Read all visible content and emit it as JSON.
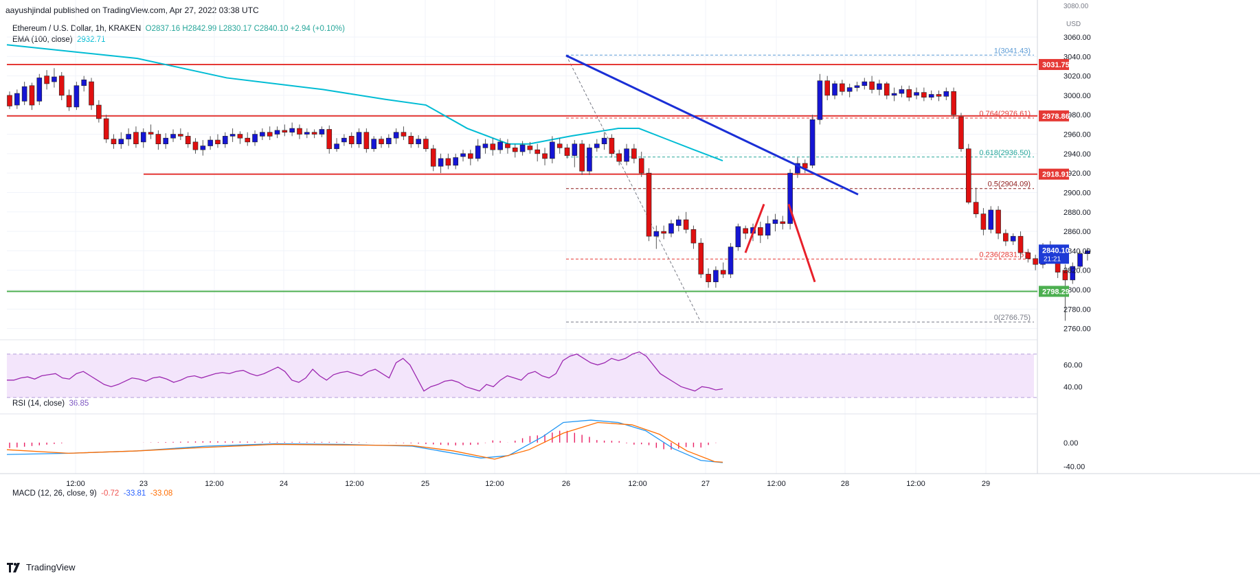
{
  "header": {
    "publisher": "aayushjindal published on TradingView.com, Apr 27, 2022 03:38 UTC"
  },
  "legend": {
    "symbol": "Ethereum / U.S. Dollar, 1h, KRAKEN",
    "ohlc": "O2837.16  H2842.99  L2830.17  C2840.10  +2.94 (+0.10%)",
    "ema_label": "EMA (100, close)",
    "ema_value": "2932.71"
  },
  "rsi": {
    "label": "RSI (14, close)",
    "value": "36.85"
  },
  "macd": {
    "label": "MACD (12, 26, close, 9)",
    "hist": "-0.72",
    "macd": "-33.81",
    "signal": "-33.08"
  },
  "footer": {
    "brand": "TradingView"
  },
  "axis": {
    "currency": "USD",
    "partial_top_tick": "3080.00"
  },
  "chart_data": [
    {
      "type": "candlestick",
      "symbol": "Ethereum / U.S. Dollar, 1h, KRAKEN",
      "x_ticks": [
        "12:00",
        "23",
        "12:00",
        "24",
        "12:00",
        "25",
        "12:00",
        "26",
        "12:00",
        "27",
        "12:00",
        "28",
        "12:00",
        "29"
      ],
      "y_ticks": [
        "3060.00",
        "3040.00",
        "3020.00",
        "3000.00",
        "2980.00",
        "2960.00",
        "2940.00",
        "2920.00",
        "2900.00",
        "2880.00",
        "2860.00",
        "2840.00",
        "2820.00",
        "2800.00",
        "2780.00",
        "2760.00"
      ],
      "ylim": [
        2752,
        3084
      ],
      "key_levels": [
        {
          "label": "3031.75",
          "color": "#e53935"
        },
        {
          "label": "2978.86",
          "color": "#e53935"
        },
        {
          "label": "2918.91",
          "color": "#e53935"
        },
        {
          "label": "2798.29",
          "color": "#4caf50"
        }
      ],
      "fib_levels": [
        {
          "label": "1(3041.43)",
          "price": 3041.43,
          "color": "#5b9bd5"
        },
        {
          "label": "0.764(2976.61)",
          "price": 2976.61,
          "color": "#e53935"
        },
        {
          "label": "0.618(2936.50)",
          "price": 2936.5,
          "color": "#26a69a"
        },
        {
          "label": "0.5(2904.09)",
          "price": 2904.09,
          "color": "#8e1b1b"
        },
        {
          "label": "0.236(2831.57)",
          "price": 2831.57,
          "color": "#e53935"
        },
        {
          "label": "0(2766.75)",
          "price": 2766.75,
          "color": "#787b86"
        }
      ],
      "last_price": {
        "price": "2840.10",
        "countdown": "21:21"
      },
      "trendline": {
        "from": 3041,
        "to": 2898,
        "color": "#1a2fd6"
      },
      "ema": {
        "value": 2932.71,
        "color": "#00bcd4"
      },
      "candles": [
        [
          3000,
          2989,
          3004,
          2986
        ],
        [
          2990,
          3002,
          3006,
          2986
        ],
        [
          2994,
          3009,
          3014,
          2990
        ],
        [
          3010,
          2990,
          3013,
          2985
        ],
        [
          2994,
          3018,
          3022,
          2990
        ],
        [
          3020,
          3012,
          3026,
          3006
        ],
        [
          3014,
          3019,
          3028,
          3008
        ],
        [
          3020,
          3000,
          3024,
          2995
        ],
        [
          3000,
          2988,
          3006,
          2984
        ],
        [
          2988,
          3010,
          3014,
          2985
        ],
        [
          3010,
          3016,
          3020,
          3004
        ],
        [
          3014,
          2990,
          3018,
          2985
        ],
        [
          2990,
          2976,
          2995,
          2972
        ],
        [
          2976,
          2955,
          2980,
          2951
        ],
        [
          2955,
          2950,
          2960,
          2945
        ],
        [
          2950,
          2955,
          2962,
          2945
        ],
        [
          2955,
          2960,
          2966,
          2948
        ],
        [
          2962,
          2950,
          2968,
          2946
        ],
        [
          2952,
          2962,
          2966,
          2946
        ],
        [
          2962,
          2960,
          2970,
          2955
        ],
        [
          2960,
          2950,
          2964,
          2944
        ],
        [
          2950,
          2956,
          2961,
          2945
        ],
        [
          2956,
          2960,
          2965,
          2952
        ],
        [
          2960,
          2958,
          2966,
          2954
        ],
        [
          2958,
          2950,
          2962,
          2946
        ],
        [
          2952,
          2944,
          2956,
          2940
        ],
        [
          2944,
          2948,
          2954,
          2938
        ],
        [
          2948,
          2954,
          2958,
          2944
        ],
        [
          2954,
          2950,
          2960,
          2946
        ],
        [
          2950,
          2958,
          2962,
          2946
        ],
        [
          2958,
          2960,
          2966,
          2952
        ],
        [
          2960,
          2956,
          2963,
          2950
        ],
        [
          2956,
          2952,
          2962,
          2948
        ],
        [
          2952,
          2960,
          2964,
          2948
        ],
        [
          2958,
          2962,
          2966,
          2954
        ],
        [
          2962,
          2958,
          2968,
          2954
        ],
        [
          2960,
          2964,
          2968,
          2956
        ],
        [
          2964,
          2962,
          2970,
          2958
        ],
        [
          2962,
          2966,
          2972,
          2958
        ],
        [
          2966,
          2960,
          2970,
          2955
        ],
        [
          2960,
          2962,
          2966,
          2956
        ],
        [
          2962,
          2960,
          2965,
          2956
        ],
        [
          2960,
          2965,
          2968,
          2957
        ],
        [
          2965,
          2945,
          2969,
          2940
        ],
        [
          2945,
          2950,
          2956,
          2942
        ],
        [
          2952,
          2956,
          2960,
          2948
        ],
        [
          2958,
          2950,
          2962,
          2946
        ],
        [
          2950,
          2962,
          2966,
          2946
        ],
        [
          2962,
          2945,
          2966,
          2941
        ],
        [
          2945,
          2955,
          2958,
          2942
        ],
        [
          2955,
          2950,
          2958,
          2946
        ],
        [
          2950,
          2956,
          2960,
          2946
        ],
        [
          2956,
          2962,
          2966,
          2950
        ],
        [
          2962,
          2958,
          2968,
          2954
        ],
        [
          2958,
          2950,
          2962,
          2946
        ],
        [
          2950,
          2955,
          2959,
          2946
        ],
        [
          2955,
          2945,
          2958,
          2942
        ],
        [
          2945,
          2927,
          2949,
          2922
        ],
        [
          2927,
          2935,
          2940,
          2920
        ],
        [
          2935,
          2928,
          2940,
          2924
        ],
        [
          2928,
          2936,
          2940,
          2924
        ],
        [
          2937,
          2940,
          2944,
          2932
        ],
        [
          2940,
          2935,
          2944,
          2928
        ],
        [
          2935,
          2948,
          2955,
          2932
        ],
        [
          2946,
          2950,
          2955,
          2940
        ],
        [
          2950,
          2944,
          2956,
          2938
        ],
        [
          2944,
          2952,
          2956,
          2940
        ],
        [
          2950,
          2946,
          2955,
          2940
        ],
        [
          2946,
          2942,
          2950,
          2936
        ],
        [
          2942,
          2949,
          2953,
          2938
        ],
        [
          2948,
          2944,
          2952,
          2940
        ],
        [
          2944,
          2940,
          2950,
          2932
        ],
        [
          2940,
          2935,
          2946,
          2928
        ],
        [
          2935,
          2952,
          2958,
          2930
        ],
        [
          2950,
          2946,
          2956,
          2940
        ],
        [
          2946,
          2938,
          2950,
          2935
        ],
        [
          2938,
          2950,
          2954,
          2926
        ],
        [
          2950,
          2922,
          2954,
          2918
        ],
        [
          2922,
          2946,
          2950,
          2918
        ],
        [
          2946,
          2950,
          2955,
          2942
        ],
        [
          2950,
          2956,
          2962,
          2944
        ],
        [
          2956,
          2940,
          2960,
          2936
        ],
        [
          2940,
          2932,
          2944,
          2928
        ],
        [
          2932,
          2945,
          2950,
          2928
        ],
        [
          2945,
          2935,
          2950,
          2930
        ],
        [
          2935,
          2920,
          2942,
          2916
        ],
        [
          2920,
          2855,
          2925,
          2850
        ],
        [
          2855,
          2860,
          2866,
          2842
        ],
        [
          2860,
          2858,
          2866,
          2852
        ],
        [
          2858,
          2868,
          2872,
          2854
        ],
        [
          2866,
          2872,
          2876,
          2860
        ],
        [
          2872,
          2862,
          2880,
          2858
        ],
        [
          2862,
          2848,
          2866,
          2842
        ],
        [
          2848,
          2816,
          2853,
          2812
        ],
        [
          2816,
          2808,
          2822,
          2802
        ],
        [
          2808,
          2820,
          2824,
          2802
        ],
        [
          2820,
          2816,
          2828,
          2812
        ],
        [
          2816,
          2844,
          2848,
          2812
        ],
        [
          2844,
          2865,
          2868,
          2840
        ],
        [
          2863,
          2858,
          2866,
          2852
        ],
        [
          2858,
          2864,
          2868,
          2850
        ],
        [
          2864,
          2856,
          2870,
          2848
        ],
        [
          2856,
          2868,
          2876,
          2852
        ],
        [
          2868,
          2872,
          2878,
          2860
        ],
        [
          2870,
          2868,
          2876,
          2862
        ],
        [
          2868,
          2920,
          2924,
          2862
        ],
        [
          2920,
          2930,
          2936,
          2915
        ],
        [
          2930,
          2925,
          2934,
          2920
        ],
        [
          2928,
          2975,
          2980,
          2925
        ],
        [
          2975,
          3015,
          3022,
          2970
        ],
        [
          3015,
          3000,
          3020,
          2995
        ],
        [
          3000,
          3012,
          3015,
          2996
        ],
        [
          3012,
          3004,
          3016,
          3000
        ],
        [
          3004,
          3008,
          3012,
          2998
        ],
        [
          3008,
          3010,
          3014,
          3004
        ],
        [
          3010,
          3014,
          3018,
          3006
        ],
        [
          3014,
          3006,
          3020,
          3002
        ],
        [
          3006,
          3012,
          3016,
          3000
        ],
        [
          3012,
          3000,
          3014,
          2996
        ],
        [
          3000,
          3002,
          3008,
          2994
        ],
        [
          3002,
          3006,
          3010,
          2998
        ],
        [
          3006,
          2998,
          3010,
          2994
        ],
        [
          3000,
          3003,
          3008,
          2996
        ],
        [
          3003,
          2998,
          3008,
          2994
        ],
        [
          2998,
          3001,
          3005,
          2995
        ],
        [
          3001,
          2999,
          3005,
          2994
        ],
        [
          2999,
          3004,
          3008,
          2995
        ],
        [
          3004,
          2980,
          3008,
          2976
        ],
        [
          2978,
          2945,
          2982,
          2942
        ],
        [
          2945,
          2890,
          2950,
          2888
        ],
        [
          2890,
          2878,
          2905,
          2874
        ],
        [
          2878,
          2862,
          2884,
          2856
        ],
        [
          2862,
          2882,
          2886,
          2858
        ],
        [
          2882,
          2858,
          2886,
          2852
        ],
        [
          2858,
          2850,
          2862,
          2845
        ],
        [
          2850,
          2855,
          2858,
          2846
        ],
        [
          2855,
          2838,
          2860,
          2832
        ],
        [
          2838,
          2832,
          2842,
          2828
        ],
        [
          2832,
          2826,
          2836,
          2820
        ],
        [
          2826,
          2846,
          2848,
          2822
        ],
        [
          2846,
          2838,
          2850,
          2834
        ],
        [
          2838,
          2818,
          2842,
          2812
        ],
        [
          2820,
          2810,
          2826,
          2768
        ],
        [
          2810,
          2824,
          2828,
          2806
        ],
        [
          2824,
          2837,
          2840,
          2822
        ],
        [
          2837,
          2840,
          2843,
          2830
        ]
      ]
    },
    {
      "type": "line",
      "name": "RSI (14, close)",
      "ylim": [
        20,
        80
      ],
      "y_ticks": [
        "60.00",
        "40.00"
      ],
      "band": [
        30,
        70
      ],
      "values": [
        46,
        46,
        48,
        49,
        47,
        50,
        51,
        52,
        48,
        47,
        52,
        54,
        50,
        46,
        42,
        40,
        42,
        45,
        48,
        47,
        45,
        48,
        49,
        47,
        44,
        46,
        49,
        50,
        48,
        50,
        52,
        53,
        52,
        54,
        55,
        52,
        50,
        52,
        55,
        58,
        54,
        46,
        44,
        48,
        56,
        50,
        46,
        51,
        53,
        54,
        52,
        50,
        54,
        56,
        52,
        48,
        62,
        66,
        60,
        48,
        36,
        40,
        42,
        45,
        46,
        44,
        40,
        38,
        36,
        42,
        40,
        46,
        50,
        48,
        46,
        52,
        54,
        50,
        48,
        52,
        64,
        68,
        70,
        66,
        62,
        60,
        62,
        66,
        64,
        66,
        70,
        72,
        68,
        60,
        52,
        48,
        44,
        40,
        38,
        36,
        40,
        39,
        37,
        38
      ]
    },
    {
      "type": "bar+line",
      "name": "MACD (12, 26, close, 9)",
      "ylim": [
        -50,
        45
      ],
      "y_ticks": [
        "0.00",
        "-40.00"
      ]
    }
  ]
}
